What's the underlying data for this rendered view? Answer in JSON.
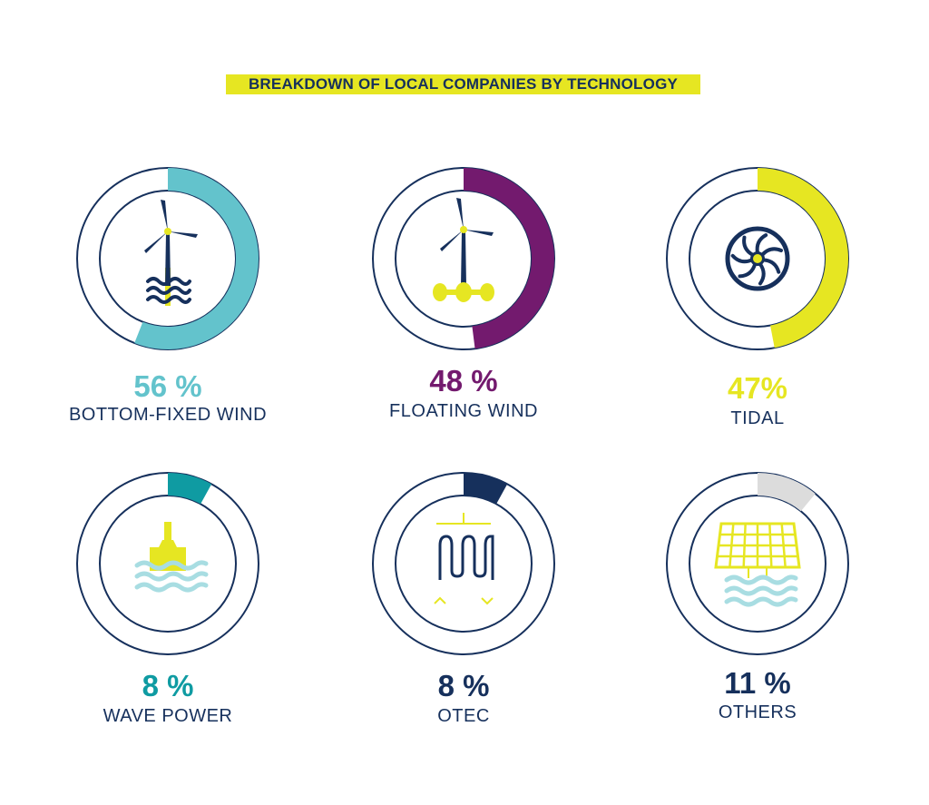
{
  "title": "BREAKDOWN OF LOCAL COMPANIES BY TECHNOLOGY",
  "colors": {
    "navy": "#16305c",
    "yellow": "#e6e622",
    "teal": "#63c3cc",
    "purple": "#731a6e",
    "dark_teal": "#0f9ba2",
    "grey": "#dcdcdc",
    "light_blue": "#a8dde2"
  },
  "chart_data": {
    "type": "pie",
    "title": "BREAKDOWN OF LOCAL COMPANIES BY TECHNOLOGY",
    "categories": [
      "BOTTOM-FIXED WIND",
      "FLOATING WIND",
      "TIDAL",
      "WAVE POWER",
      "OTEC",
      "OTHERS"
    ],
    "values": [
      56,
      48,
      47,
      8,
      8,
      11
    ],
    "unit": "%",
    "items": [
      {
        "label": "BOTTOM-FIXED WIND",
        "value": 56,
        "value_label": "56 %",
        "color": "#63c3cc",
        "icon": "bottom-fixed-wind-turbine-icon"
      },
      {
        "label": "FLOATING WIND",
        "value": 48,
        "value_label": "48 %",
        "color": "#731a6e",
        "icon": "floating-wind-turbine-icon"
      },
      {
        "label": "TIDAL",
        "value": 47,
        "value_label": "47%",
        "color": "#e6e622",
        "icon": "tidal-turbine-icon"
      },
      {
        "label": "WAVE POWER",
        "value": 8,
        "value_label": "8 %",
        "color": "#0f9ba2",
        "icon": "wave-power-buoy-icon"
      },
      {
        "label": "OTEC",
        "value": 8,
        "value_label": "8 %",
        "color": "#16305c",
        "icon": "otec-heat-exchanger-icon"
      },
      {
        "label": "OTHERS",
        "value": 11,
        "value_label": "11 %",
        "color": "#dcdcdc",
        "icon": "solar-panel-over-waves-icon"
      }
    ]
  }
}
